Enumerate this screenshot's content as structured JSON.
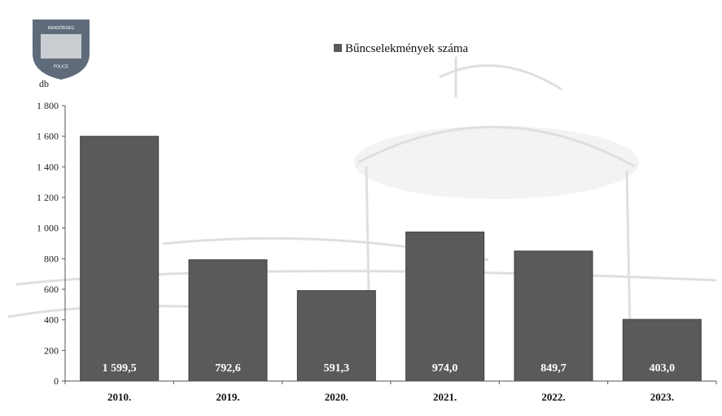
{
  "chart_data": {
    "type": "bar",
    "categories": [
      "2010.",
      "2019.",
      "2020.",
      "2021.",
      "2022.",
      "2023."
    ],
    "series": [
      {
        "name": "Bűncselekmények száma",
        "values": [
          1599.5,
          792.6,
          591.3,
          974.0,
          849.7,
          403.0
        ],
        "data_labels": [
          "1 599,5",
          "792,6",
          "591,3",
          "974,0",
          "849,7",
          "403,0"
        ],
        "color": "#5a5a5a"
      }
    ],
    "ylim": [
      0,
      1800
    ],
    "yticks": [
      0,
      200,
      400,
      600,
      800,
      1000,
      1200,
      1400,
      1600,
      1800
    ],
    "ytick_labels": [
      "0",
      "200",
      "400",
      "600",
      "800",
      "1 000",
      "1 200",
      "1 400",
      "1 600",
      "1 800"
    ],
    "y_unit": "db",
    "legend_position": "top-center",
    "grid": false,
    "title": "",
    "xlabel": "",
    "ylabel": ""
  },
  "colors": {
    "bar": "#5a5a5a",
    "bar_stroke": "#3f3f3f",
    "axis": "#555555",
    "logo_primary": "#5f6b7a",
    "logo_band": "#c9cdd2"
  },
  "logo": {
    "icon": "police-crest-icon",
    "text_top": "RENDŐRSÉG",
    "text_bottom": "POLICE"
  }
}
